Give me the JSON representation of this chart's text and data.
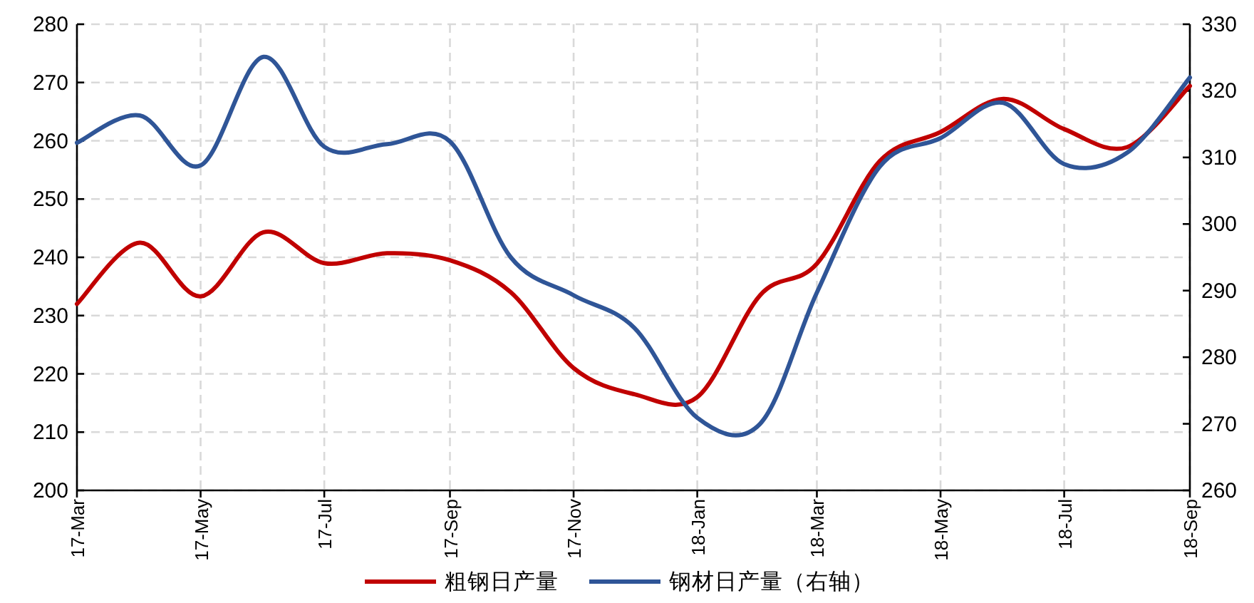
{
  "chart_data": {
    "type": "line",
    "x": [
      "2017-03",
      "2017-04",
      "2017-05",
      "2017-06",
      "2017-07",
      "2017-08",
      "2017-09",
      "2017-10",
      "2017-11",
      "2017-12",
      "2018-01",
      "2018-02",
      "2018-03",
      "2018-04",
      "2018-05",
      "2018-06",
      "2018-07",
      "2018-08",
      "2018-09"
    ],
    "series": [
      {
        "name": "粗钢日产量",
        "color": "#c00000",
        "values": [
          232,
          242.5,
          233.3,
          244.3,
          239,
          240.7,
          239.5,
          234,
          221,
          216.5,
          216,
          233.5,
          238.9,
          256.5,
          261.5,
          267.2,
          262,
          258.9,
          269.4
        ]
      },
      {
        "name": "钢材日产量（右轴）",
        "color": "#2f5597",
        "axis": "y2",
        "values": [
          312.2,
          316.3,
          308.8,
          325.1,
          311.6,
          312,
          312.4,
          295,
          289.3,
          284.4,
          270.9,
          270,
          289.7,
          308.6,
          312.9,
          318.2,
          309,
          310.7,
          322
        ]
      }
    ],
    "xlim": [
      "2017-03",
      "2018-09"
    ],
    "xticks": [
      {
        "value": "2017-03",
        "label": "17-Mar"
      },
      {
        "value": "2017-05",
        "label": "17-May"
      },
      {
        "value": "2017-07",
        "label": "17-Jul"
      },
      {
        "value": "2017-09",
        "label": "17-Sep"
      },
      {
        "value": "2017-11",
        "label": "17-Nov"
      },
      {
        "value": "2018-01",
        "label": "18-Jan"
      },
      {
        "value": "2018-03",
        "label": "18-Mar"
      },
      {
        "value": "2018-05",
        "label": "18-May"
      },
      {
        "value": "2018-07",
        "label": "18-Jul"
      },
      {
        "value": "2018-09",
        "label": "18-Sep"
      }
    ],
    "ylim": [
      200,
      280
    ],
    "yticks": [
      200,
      210,
      220,
      230,
      240,
      250,
      260,
      270,
      280
    ],
    "y2lim": [
      260,
      330
    ],
    "y2ticks": [
      260,
      270,
      280,
      290,
      300,
      310,
      320,
      330
    ],
    "grid": true,
    "legend": "bottom",
    "line_style": "solid",
    "marker": "none"
  }
}
